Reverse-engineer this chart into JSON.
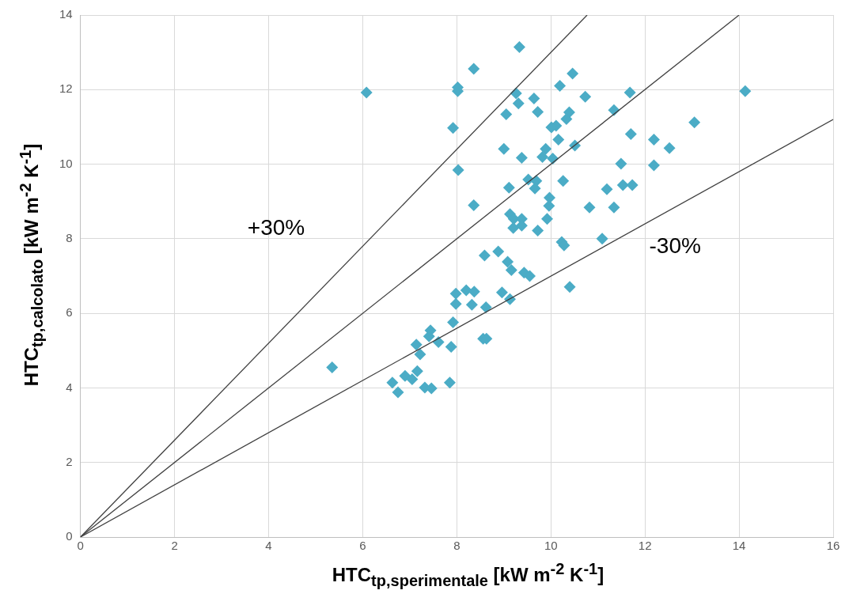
{
  "chart_data": {
    "type": "scatter",
    "xlabel": "HTC$_{tp,sperimentale}$ [kW m$^{-2}$ K$^{-1}$]",
    "ylabel": "HTC$_{tp,calcolato}$ [kW m$^{-2}$ K$^{-1}$]",
    "xlim": [
      0,
      16
    ],
    "xticks": [
      0,
      2,
      4,
      6,
      8,
      10,
      12,
      14,
      16
    ],
    "ylim": [
      0,
      14
    ],
    "yticks": [
      0,
      2,
      4,
      6,
      8,
      10,
      12,
      14
    ],
    "grid": true,
    "legend": false,
    "marker": "diamond",
    "series": [
      {
        "type": "line",
        "color": "#404040",
        "marker": "none",
        "x": [
          0,
          10.77
        ],
        "values": [
          0,
          14
        ]
      },
      {
        "type": "line",
        "color": "#404040",
        "marker": "none",
        "x": [
          0,
          14
        ],
        "values": [
          0,
          14
        ]
      },
      {
        "type": "line",
        "color": "#404040",
        "marker": "none",
        "x": [
          0,
          16
        ],
        "values": [
          0,
          11.2
        ]
      },
      {
        "color": "#4bacc6",
        "x": [
          5.35,
          6.08,
          7.92,
          8.02,
          8.02,
          8.03,
          8.36,
          9.33,
          8.36,
          9.05,
          9.26,
          9.31,
          9.64,
          10.46,
          10.19,
          10.73,
          11.68,
          14.13,
          9.0,
          9.72,
          10.39,
          10.33,
          10.11,
          10.01,
          10.16,
          9.89,
          9.82,
          10.04,
          10.51,
          9.38,
          9.11,
          9.52,
          9.69,
          9.66,
          9.97,
          9.96,
          9.92,
          10.26,
          9.13,
          9.21,
          9.2,
          9.38,
          9.38,
          9.72,
          10.82,
          11.34,
          11.19,
          11.53,
          11.73,
          11.34,
          13.05,
          11.7,
          12.19,
          12.52,
          11.49,
          12.19,
          11.09,
          10.23,
          10.28,
          10.4,
          8.59,
          8.88,
          9.08,
          9.16,
          9.43,
          9.55,
          7.98,
          8.2,
          8.37,
          7.98,
          8.32,
          8.62,
          8.96,
          9.13,
          7.92,
          7.44,
          7.41,
          7.61,
          8.56,
          8.63,
          7.14,
          7.22,
          7.88,
          7.16,
          6.9,
          7.05,
          6.63,
          6.75,
          7.32,
          7.46,
          7.85
        ],
        "values": [
          4.55,
          11.92,
          10.97,
          11.96,
          12.06,
          9.84,
          12.56,
          13.14,
          8.9,
          11.34,
          11.9,
          11.63,
          11.76,
          12.43,
          12.1,
          11.81,
          11.92,
          11.96,
          10.41,
          11.4,
          11.39,
          11.21,
          11.03,
          10.99,
          10.66,
          10.41,
          10.19,
          10.15,
          10.5,
          10.17,
          9.37,
          9.59,
          9.55,
          9.35,
          9.1,
          8.88,
          8.53,
          9.55,
          8.66,
          8.53,
          8.29,
          8.53,
          8.35,
          8.22,
          8.84,
          8.84,
          9.33,
          9.44,
          9.44,
          11.45,
          11.12,
          10.81,
          10.66,
          10.43,
          10.01,
          9.97,
          8.0,
          7.91,
          7.82,
          6.71,
          7.55,
          7.66,
          7.38,
          7.16,
          7.09,
          7.0,
          6.53,
          6.62,
          6.58,
          6.25,
          6.23,
          6.16,
          6.56,
          6.38,
          5.76,
          5.54,
          5.38,
          5.23,
          5.32,
          5.32,
          5.16,
          4.9,
          5.1,
          4.45,
          4.32,
          4.23,
          4.14,
          3.88,
          4.01,
          3.99,
          4.14
        ]
      }
    ],
    "annotations": [
      "+30%",
      "-30%"
    ]
  }
}
